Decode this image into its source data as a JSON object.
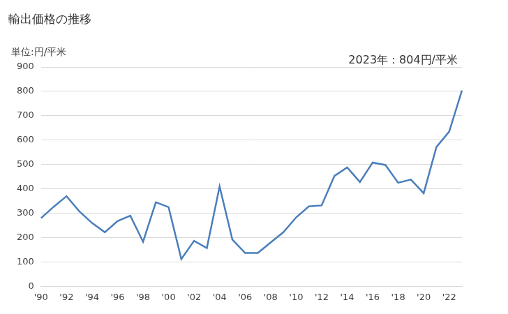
{
  "chart_data": {
    "type": "line",
    "title": "輸出価格の推移",
    "y_label": "単位:円/平米",
    "annotations": [
      "2023年：804円/平米"
    ],
    "categories": [
      "'90",
      null,
      "'92",
      null,
      "'94",
      null,
      "'96",
      null,
      "'98",
      null,
      "'00",
      null,
      "'02",
      null,
      "'04",
      null,
      "'06",
      null,
      "'08",
      null,
      "'10",
      null,
      "'12",
      null,
      "'14",
      null,
      "'16",
      null,
      "'18",
      null,
      "'20",
      null,
      "'22",
      null
    ],
    "values": [
      280,
      327,
      370,
      308,
      260,
      222,
      268,
      290,
      183,
      345,
      325,
      112,
      187,
      157,
      410,
      192,
      137,
      137,
      180,
      222,
      283,
      328,
      332,
      453,
      488,
      428,
      508,
      498,
      425,
      438,
      382,
      572,
      635,
      804
    ],
    "color": "#4a7ebb",
    "ylim": [
      0,
      900
    ],
    "yticks": [
      0,
      100,
      200,
      300,
      400,
      500,
      600,
      700,
      800,
      900
    ],
    "grid": true
  }
}
